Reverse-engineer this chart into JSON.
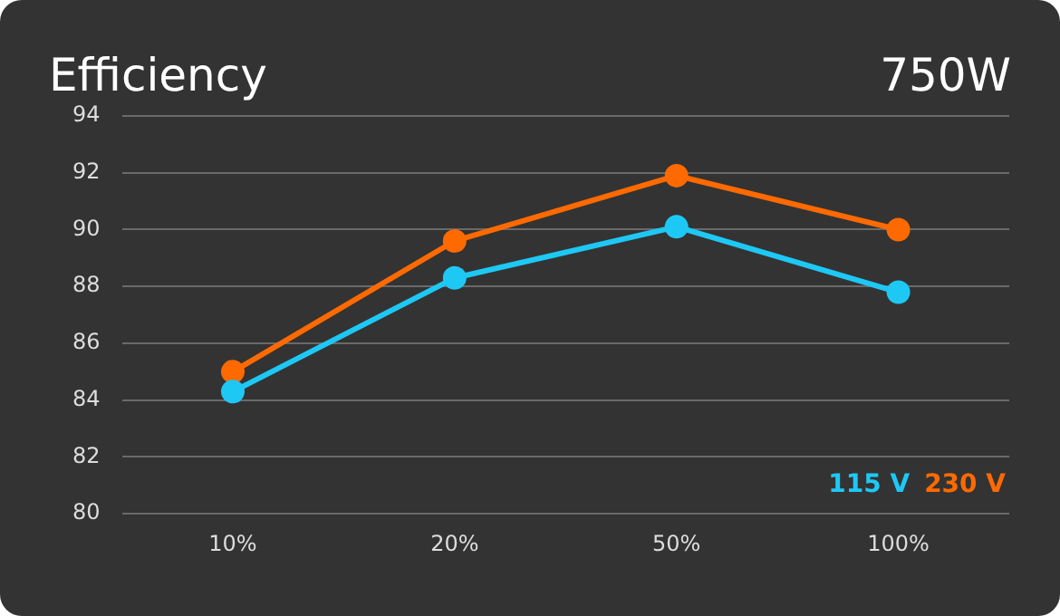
{
  "chart_data": {
    "type": "line",
    "title": "Efficiency",
    "subtitle": "750W",
    "categories": [
      "10%",
      "20%",
      "50%",
      "100%"
    ],
    "series": [
      {
        "name": "115 V",
        "color": "#1ec8f5",
        "values": [
          84.3,
          88.3,
          90.1,
          87.8
        ]
      },
      {
        "name": "230 V",
        "color": "#ff6a00",
        "values": [
          85.0,
          89.6,
          91.9,
          90.0
        ]
      }
    ],
    "ylim": [
      80,
      94
    ],
    "yticks": [
      80,
      82,
      84,
      86,
      88,
      90,
      92,
      94
    ],
    "grid": "y",
    "legend": "bottom right",
    "marker": "circle",
    "line_style": "solid"
  }
}
